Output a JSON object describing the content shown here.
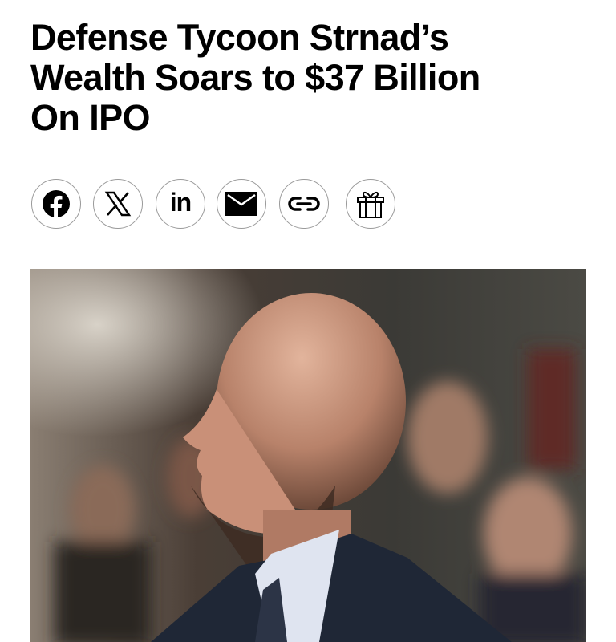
{
  "article": {
    "headline_lines": [
      "Defense Tycoon Strnad’s",
      "Wealth Soars to $37 Billion",
      "On IPO"
    ]
  },
  "share": {
    "buttons": [
      {
        "id": "facebook",
        "icon": "facebook-icon"
      },
      {
        "id": "x",
        "icon": "x-icon"
      },
      {
        "id": "linkedin",
        "icon": "linkedin-icon",
        "text": "in"
      },
      {
        "id": "email",
        "icon": "mail-icon"
      },
      {
        "id": "copy-link",
        "icon": "link-icon"
      },
      {
        "id": "gift",
        "icon": "gift-icon"
      }
    ]
  },
  "colors": {
    "text": "#000000",
    "button_border": "#9a9a9a"
  }
}
